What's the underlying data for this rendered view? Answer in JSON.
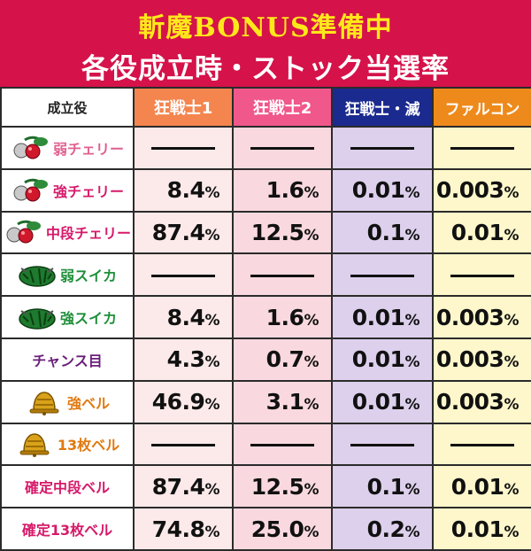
{
  "banner": {
    "line1": "斬魔BONUS準備中",
    "line2": "各役成立時・ストック当選率"
  },
  "header": {
    "role": "成立役",
    "col1": "狂戦士1",
    "col2": "狂戦士2",
    "col3": "狂戦士・滅",
    "col4": "ファルコン"
  },
  "colors": {
    "banner_bg": "#d5124a",
    "banner_line1": "#ffe81a",
    "cherry_label": "#d61a6a",
    "weak_cherry_label": "#e0608f",
    "suika_label": "#1f8f3a",
    "chance_label": "#6a1e7a",
    "bell_label": "#e07a10",
    "confirm_label": "#d61a6a"
  },
  "rows": [
    {
      "icon": "cherry-icon",
      "label": "弱チェリー",
      "v1": null,
      "v2": null,
      "v3": null,
      "v4": null
    },
    {
      "icon": "cherry-icon",
      "label": "強チェリー",
      "v1": "8.4",
      "v2": "1.6",
      "v3": "0.01",
      "v4": "0.003"
    },
    {
      "icon": "cherry-icon",
      "label": "中段チェリー",
      "v1": "87.4",
      "v2": "12.5",
      "v3": "0.1",
      "v4": "0.01"
    },
    {
      "icon": "watermelon-icon",
      "label": "弱スイカ",
      "v1": null,
      "v2": null,
      "v3": null,
      "v4": null
    },
    {
      "icon": "watermelon-icon",
      "label": "強スイカ",
      "v1": "8.4",
      "v2": "1.6",
      "v3": "0.01",
      "v4": "0.003"
    },
    {
      "icon": "",
      "label": "チャンス目",
      "v1": "4.3",
      "v2": "0.7",
      "v3": "0.01",
      "v4": "0.003"
    },
    {
      "icon": "bell-icon",
      "label": "強ベル",
      "v1": "46.9",
      "v2": "3.1",
      "v3": "0.01",
      "v4": "0.003"
    },
    {
      "icon": "bell-icon",
      "label": "13枚ベル",
      "v1": null,
      "v2": null,
      "v3": null,
      "v4": null
    },
    {
      "icon": "",
      "label": "確定中段ベル",
      "v1": "87.4",
      "v2": "12.5",
      "v3": "0.1",
      "v4": "0.01"
    },
    {
      "icon": "",
      "label": "確定13枚ベル",
      "v1": "74.8",
      "v2": "25.0",
      "v3": "0.2",
      "v4": "0.01"
    }
  ],
  "unit": "%"
}
